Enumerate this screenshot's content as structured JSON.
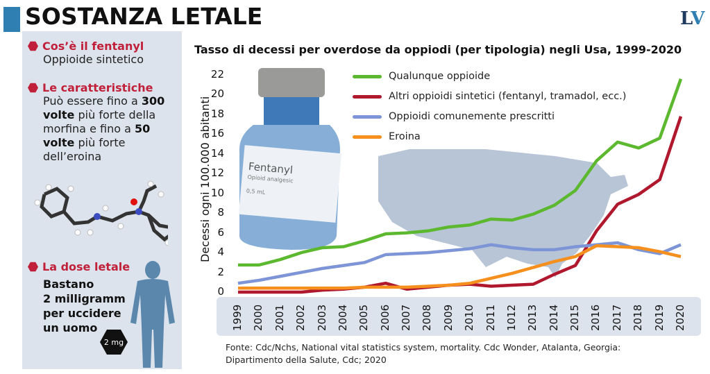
{
  "header": {
    "title": "SOSTANZA LETALE",
    "logo": "LV"
  },
  "sidebar": {
    "sections": [
      {
        "heading": "Cos’è il fentanyl",
        "body": "Oppioide sintetico"
      },
      {
        "heading": "Le caratteristiche",
        "body_parts": [
          "Può essere fino a ",
          "300 volte",
          " più forte della morfina e fino a ",
          "50 volte",
          " più forte dell’eroina"
        ]
      },
      {
        "heading": "La dose letale",
        "body_lines": [
          "Bastano",
          "2 milligramm",
          "per uccidere",
          "un uomo"
        ]
      }
    ],
    "dose_badge": "2 mg",
    "vial_label": {
      "name": "Fentanyl",
      "sub": "Opioid analgesic",
      "volume": "0,5 mL"
    }
  },
  "chart_data": {
    "type": "line",
    "title": "Tasso di decessi per overdose da oppiodi (per tipologia) negli Usa, 1999-2020",
    "xlabel": "",
    "ylabel": "Decessi ogni 100.000 abitanti",
    "ylim": [
      0,
      22
    ],
    "yticks": [
      "0",
      "2",
      "4",
      "6",
      "8",
      "10",
      "12",
      "14",
      "16",
      "18",
      "20",
      "22"
    ],
    "categories": [
      "1999",
      "2000",
      "2001",
      "2002",
      "2003",
      "2004",
      "2005",
      "2006",
      "2007",
      "2008",
      "2009",
      "2010",
      "2011",
      "1012",
      "2013",
      "2014",
      "2015",
      "2016",
      "2017",
      "2018",
      "2019",
      "2020"
    ],
    "grid": false,
    "legend": "top",
    "series": [
      {
        "name": "Qualunque oppioide",
        "color": "#5cb82e",
        "values": [
          2.75,
          2.75,
          3.3,
          4.0,
          4.5,
          4.6,
          5.2,
          5.9,
          6.0,
          6.2,
          6.6,
          6.8,
          7.4,
          7.3,
          7.9,
          8.8,
          10.3,
          13.3,
          15.2,
          14.6,
          15.6,
          21.6
        ]
      },
      {
        "name": "Altri oppioidi sintetici (fentanyl, tramadol, ecc.)",
        "color": "#b0182e",
        "values": [
          0.0,
          0.0,
          0.0,
          0.0,
          0.2,
          0.3,
          0.5,
          0.9,
          0.3,
          0.5,
          0.7,
          0.8,
          0.6,
          0.7,
          0.8,
          1.8,
          2.7,
          6.2,
          8.9,
          9.9,
          11.4,
          17.8
        ]
      },
      {
        "name": "Oppioidi comunemente prescritti",
        "color": "#7d95d6",
        "values": [
          0.9,
          1.2,
          1.6,
          2.0,
          2.4,
          2.7,
          3.0,
          3.8,
          3.9,
          4.0,
          4.2,
          4.4,
          4.8,
          4.5,
          4.3,
          4.3,
          4.6,
          4.8,
          5.0,
          4.3,
          3.9,
          4.8
        ]
      },
      {
        "name": "Eroina",
        "color": "#f5901e",
        "values": [
          0.4,
          0.4,
          0.4,
          0.4,
          0.4,
          0.4,
          0.5,
          0.5,
          0.5,
          0.6,
          0.7,
          0.9,
          1.4,
          1.9,
          2.5,
          3.1,
          3.6,
          4.7,
          4.6,
          4.5,
          4.1,
          3.6
        ]
      }
    ]
  },
  "source": "Fonte: Cdc/Nchs, National vital statistics system, mortality. Cdc Wonder, Atalanta, Georgia: Dipartimento della Salute, Cdc; 2020"
}
